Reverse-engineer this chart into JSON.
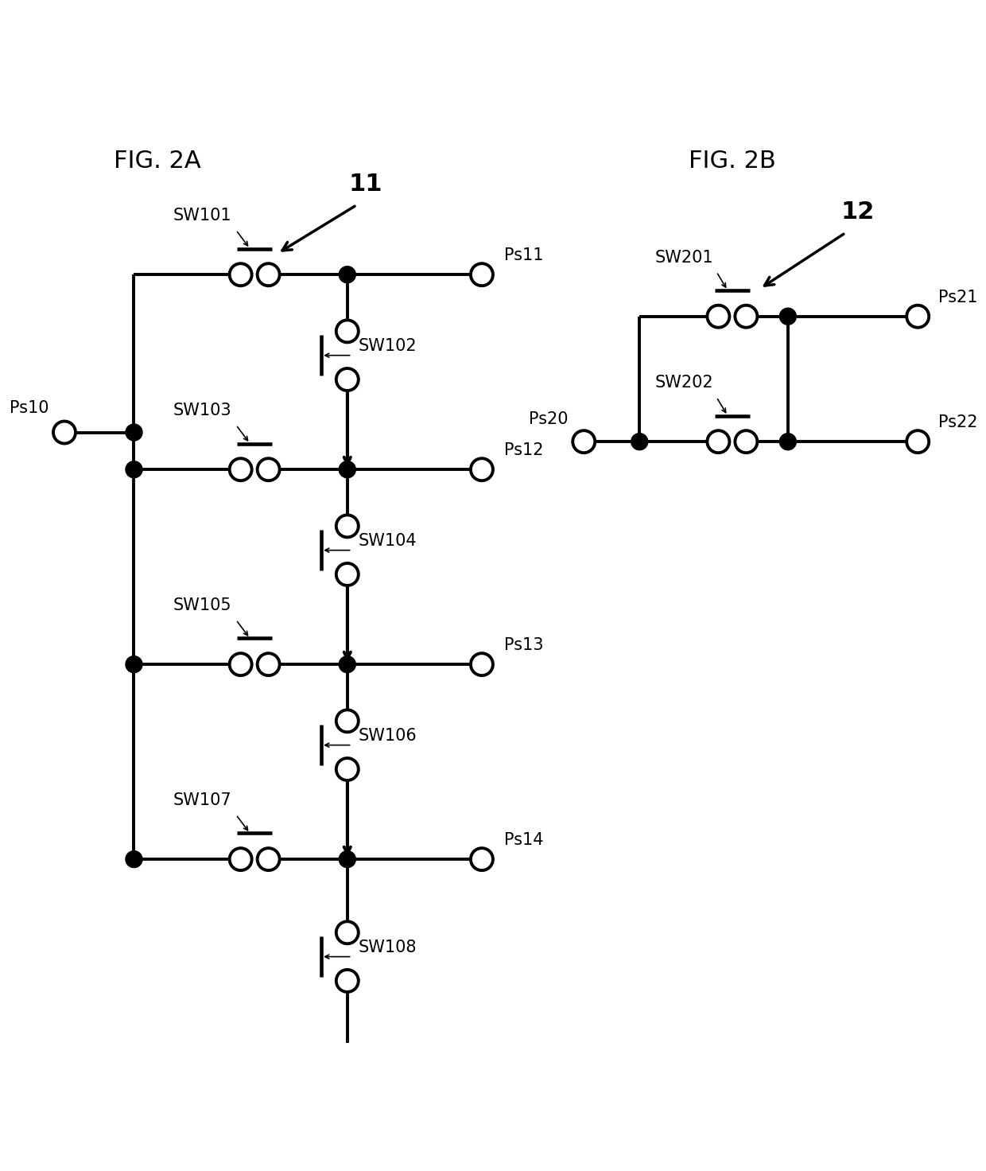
{
  "fig_title_2A": "FIG. 2A",
  "fig_title_2B": "FIG. 2B",
  "label_11": "11",
  "label_12": "12",
  "background_color": "#ffffff",
  "line_color": "#000000",
  "line_width": 2.8,
  "font_size_title": 22,
  "font_size_label": 15,
  "font_size_ref": 22
}
